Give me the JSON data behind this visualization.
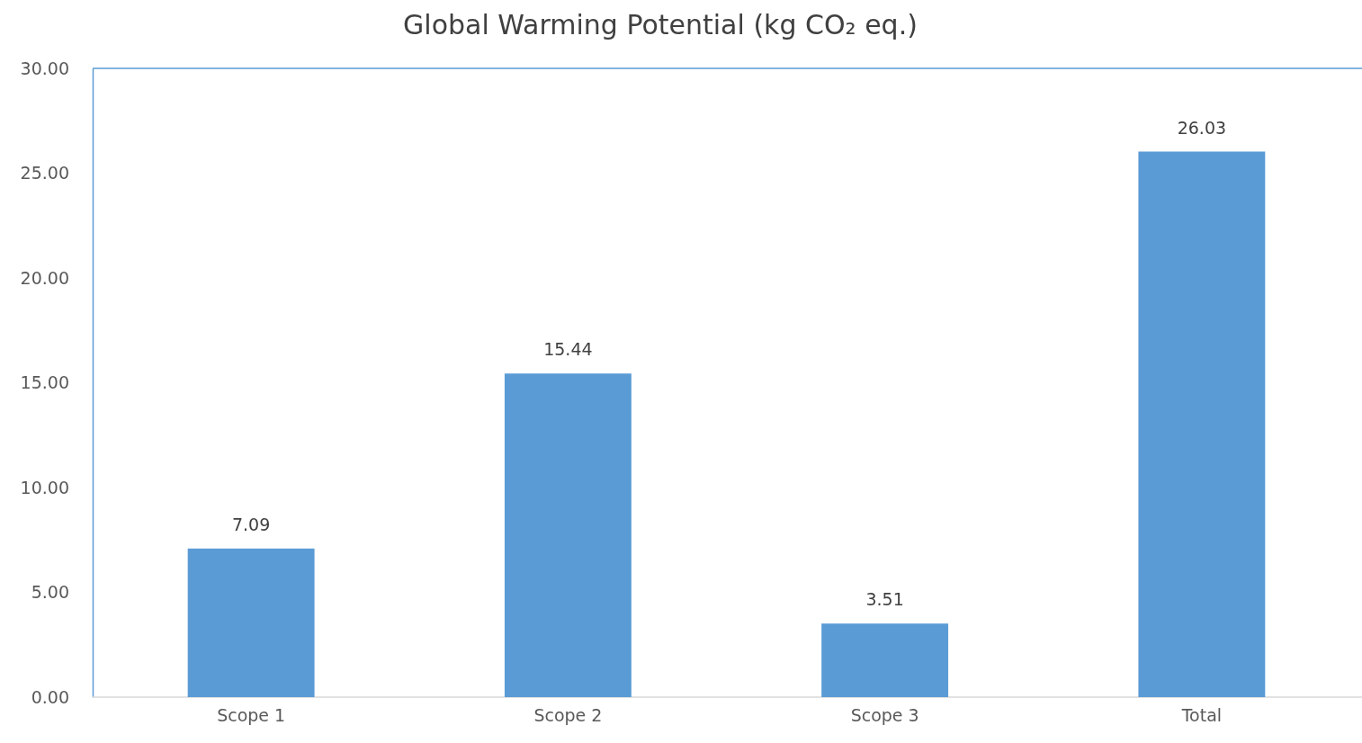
{
  "chart_data": {
    "type": "bar",
    "title": "Global Warming Potential (kg CO₂ eq.)",
    "categories": [
      "Scope 1",
      "Scope 2",
      "Scope 3",
      "Total"
    ],
    "values": [
      7.09,
      15.44,
      3.51,
      26.03
    ],
    "color": "#5b9bd5",
    "ylim": [
      0,
      30
    ],
    "yticks": [
      {
        "value": 0,
        "label": "0.00"
      },
      {
        "value": 5,
        "label": "5.00"
      },
      {
        "value": 10,
        "label": "10.00"
      },
      {
        "value": 15,
        "label": "15.00"
      },
      {
        "value": 20,
        "label": "20.00"
      },
      {
        "value": 25,
        "label": "25.00"
      },
      {
        "value": 30,
        "label": "30.00"
      }
    ],
    "data_labels": true
  }
}
